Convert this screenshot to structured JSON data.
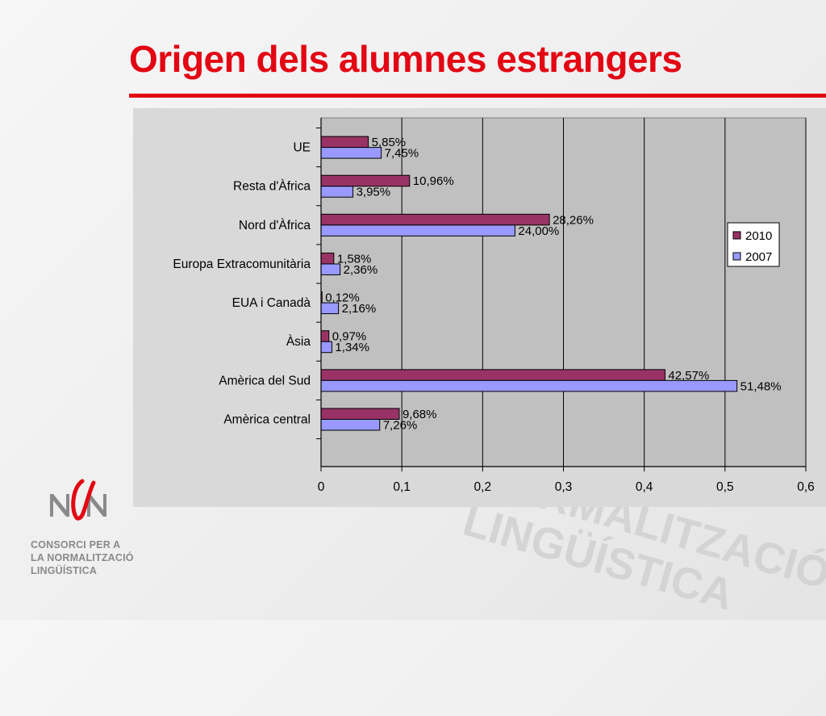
{
  "slide": {
    "title": "Origen dels alumnes estrangers",
    "accent_color": "#e30613"
  },
  "logo": {
    "icon": "consorci-logo-icon",
    "lines": [
      "CONSORCI PER A",
      "LA NORMALITZACIÓ",
      "LINGÜÍSTICA"
    ]
  },
  "watermark": {
    "lines": [
      "NORMALITZACIÓ",
      "LINGÜÍSTICA"
    ]
  },
  "chart_data": {
    "type": "bar",
    "orientation": "horizontal",
    "categories": [
      "UE",
      "Resta d'Àfrica",
      "Nord d'Àfrica",
      "Europa Extracomunitària",
      "EUA i Canadà",
      "Àsia",
      "Amèrica del Sud",
      "Amèrica central"
    ],
    "series": [
      {
        "name": "2010",
        "color": "#993366",
        "values": [
          0.0585,
          0.1096,
          0.2826,
          0.0158,
          0.0012,
          0.0097,
          0.4257,
          0.0968
        ],
        "labels": [
          "5,85%",
          "10,96%",
          "28,26%",
          "1,58%",
          "0,12%",
          "0,97%",
          "42,57%",
          "9,68%"
        ]
      },
      {
        "name": "2007",
        "color": "#9999ff",
        "values": [
          0.0745,
          0.0395,
          0.24,
          0.0236,
          0.0216,
          0.0134,
          0.5148,
          0.0726
        ],
        "labels": [
          "7,45%",
          "3,95%",
          "24,00%",
          "2,36%",
          "2,16%",
          "1,34%",
          "51,48%",
          "7,26%"
        ]
      }
    ],
    "xlim": [
      0,
      0.6
    ],
    "xticks": [
      0,
      0.1,
      0.2,
      0.3,
      0.4,
      0.5,
      0.6
    ],
    "xtick_labels": [
      "0",
      "0,1",
      "0,2",
      "0,3",
      "0,4",
      "0,5",
      "0,6"
    ],
    "grid": true,
    "legend": "right",
    "plot_background": "#c0c0c0"
  }
}
